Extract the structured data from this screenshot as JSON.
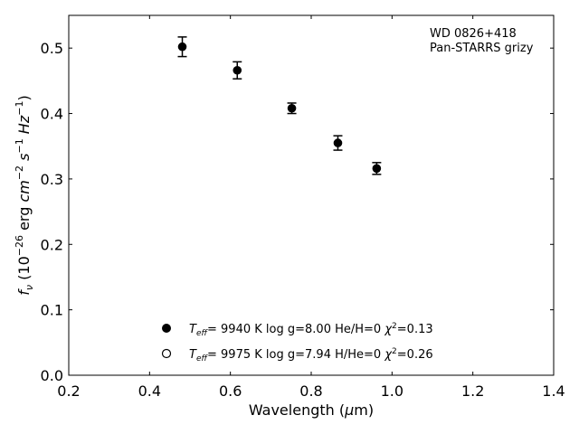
{
  "chart_data": {
    "type": "scatter",
    "annotation_lines": [
      "WD 0826+418",
      "Pan-STARRS grizy"
    ],
    "xlabel": "Wavelength (μm)",
    "ylabel": "f_ν (10^-26 erg cm^-2 s^-1 Hz^-1)",
    "xlim": [
      0.2,
      1.4
    ],
    "ylim": [
      0.0,
      0.55
    ],
    "x_ticks": [
      0.2,
      0.4,
      0.6,
      0.8,
      1.0,
      1.2,
      1.4
    ],
    "y_ticks": [
      0.0,
      0.1,
      0.2,
      0.3,
      0.4,
      0.5
    ],
    "x_tick_labels": [
      "0.2",
      "0.4",
      "0.6",
      "0.8",
      "1.0",
      "1.2",
      "1.4"
    ],
    "y_tick_labels": [
      "0.0",
      "0.1",
      "0.2",
      "0.3",
      "0.4",
      "0.5"
    ],
    "grid": false,
    "series": [
      {
        "marker": "filled",
        "x": [
          0.481,
          0.617,
          0.752,
          0.866,
          0.962
        ],
        "y": [
          0.502,
          0.466,
          0.408,
          0.355,
          0.316
        ],
        "yerr": [
          0.015,
          0.013,
          0.008,
          0.011,
          0.009
        ]
      }
    ],
    "legend": {
      "placement": "lower-center",
      "entries": [
        {
          "marker": "filled",
          "text": "Teff= 9940 K log g=8.00 He/H=0 χ2=0.13",
          "teff": "9940 K",
          "logg": "log g=8.00",
          "comp": "He/H=0",
          "chi2": "=0.13"
        },
        {
          "marker": "open",
          "text": "Teff= 9975 K log g=7.94 H/He=0 χ2=0.26",
          "teff": "9975 K",
          "logg": "log g=7.94",
          "comp": "H/He=0",
          "chi2": "=0.26"
        }
      ]
    }
  }
}
